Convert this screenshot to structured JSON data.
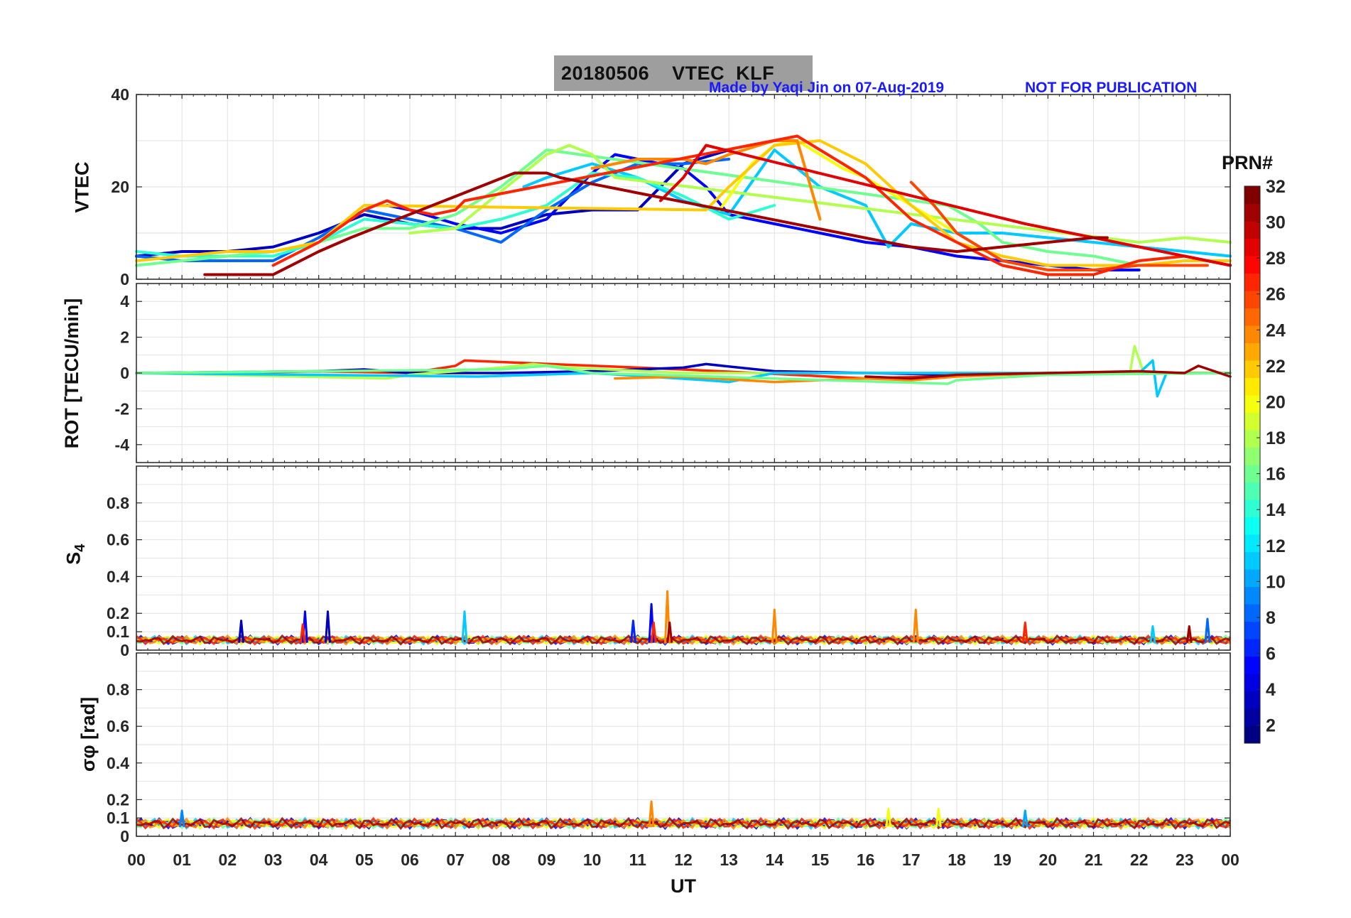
{
  "figure": {
    "title": "20180506    VTEC  KLF",
    "made_by": "Made by Yaqi Jin on 07-Aug-2019",
    "notice": "NOT FOR PUBLICATION",
    "xlabel": "UT",
    "colorbar_label": "PRN#"
  },
  "chart_data": [
    {
      "type": "line",
      "panel": "VTEC",
      "ylabel": "VTEC",
      "xlabel": "UT",
      "xlim": [
        0,
        24
      ],
      "ylim": [
        0,
        40
      ],
      "yticks": [
        0,
        20,
        40
      ],
      "grid": true,
      "color_by": "PRN",
      "series": [
        {
          "prn": 3,
          "x": [
            0,
            1,
            2,
            3,
            4,
            5,
            6,
            7,
            8,
            9,
            10,
            11,
            12,
            13
          ],
          "y": [
            5,
            6,
            6,
            7,
            10,
            14,
            12,
            11,
            11,
            14,
            15,
            15,
            25,
            28
          ]
        },
        {
          "prn": 5,
          "x": [
            5.5,
            6,
            7,
            8,
            9,
            10,
            10.5,
            11,
            12,
            12.5,
            13,
            14,
            15,
            16,
            17,
            18,
            19,
            20,
            21,
            22
          ],
          "y": [
            16,
            15,
            12,
            10,
            13,
            23,
            27,
            26,
            24,
            20,
            14,
            12,
            10,
            8,
            7,
            5,
            4,
            3,
            2,
            2
          ]
        },
        {
          "prn": 8,
          "x": [
            0,
            1,
            2,
            3,
            4,
            5,
            6,
            7,
            8,
            9,
            10,
            11,
            12,
            13
          ],
          "y": [
            5,
            4,
            4,
            4,
            9,
            15,
            13,
            11,
            8,
            15,
            21,
            25,
            25,
            26
          ]
        },
        {
          "prn": 11,
          "x": [
            8.5,
            9,
            10,
            11,
            12,
            13,
            14,
            15,
            16,
            16.5,
            17,
            18,
            19,
            20,
            21,
            22,
            23,
            24
          ],
          "y": [
            20,
            22,
            25,
            22,
            17,
            14,
            28,
            20,
            16,
            7,
            12,
            10,
            10,
            9,
            8,
            7,
            6,
            5
          ]
        },
        {
          "prn": 14,
          "x": [
            0,
            1,
            2,
            3,
            4,
            5,
            6,
            7,
            8,
            9,
            10,
            11,
            12,
            13,
            14
          ],
          "y": [
            6,
            5,
            5,
            5,
            8,
            13,
            12,
            11,
            13,
            16,
            23,
            22,
            18,
            13,
            16
          ]
        },
        {
          "prn": 16,
          "x": [
            0,
            1,
            2,
            3,
            4,
            5,
            6,
            7,
            8,
            9,
            17.8,
            18.5,
            19,
            20,
            21,
            22,
            23
          ],
          "y": [
            3,
            4,
            5,
            6,
            8,
            11,
            11,
            14,
            20,
            28,
            16,
            12,
            8,
            6,
            5,
            3,
            3
          ]
        },
        {
          "prn": 18,
          "x": [
            6,
            7,
            8,
            9,
            9.5,
            10,
            10.5,
            22,
            23,
            24
          ],
          "y": [
            10,
            11,
            19,
            27,
            29,
            27,
            22,
            8,
            9,
            8
          ]
        },
        {
          "prn": 20,
          "x": [
            12.8,
            13.5,
            14,
            14.5,
            15,
            15.5,
            16,
            17,
            18
          ],
          "y": [
            15,
            25,
            29,
            30,
            27,
            24,
            22,
            16,
            10
          ]
        },
        {
          "prn": 22,
          "x": [
            0,
            1,
            2,
            3,
            4,
            5,
            12.5,
            13,
            14,
            15,
            16,
            17,
            18,
            19,
            20,
            21,
            22,
            23,
            24
          ],
          "y": [
            4,
            5,
            6,
            6,
            8,
            16,
            15,
            20,
            29,
            30,
            25,
            16,
            8,
            5,
            3,
            3,
            3,
            4,
            4
          ]
        },
        {
          "prn": 24,
          "x": [
            10,
            11,
            12,
            12.5,
            13,
            14,
            14.5,
            15
          ],
          "y": [
            24,
            26,
            26,
            25,
            27,
            30,
            30,
            13
          ]
        },
        {
          "prn": 26,
          "x": [
            17,
            17.5,
            18,
            19,
            20,
            21,
            22,
            23,
            23.5
          ],
          "y": [
            21,
            16,
            10,
            4,
            2,
            2,
            3,
            3,
            3
          ]
        },
        {
          "prn": 27,
          "x": [
            3,
            4,
            5,
            5.5,
            6,
            6.5,
            7,
            7.2,
            14.5,
            15,
            16,
            17,
            18,
            19,
            20,
            21,
            22,
            23,
            24
          ],
          "y": [
            3,
            8,
            15,
            17,
            15,
            14,
            15,
            17,
            31,
            28,
            22,
            13,
            8,
            3,
            1,
            1,
            4,
            5,
            3
          ]
        },
        {
          "prn": 29,
          "x": [
            11.5,
            12,
            12.5,
            19.5,
            20,
            21,
            22,
            23,
            24
          ],
          "y": [
            17,
            22,
            29,
            12,
            11,
            9,
            7,
            5,
            3
          ]
        },
        {
          "prn": 31,
          "x": [
            1.5,
            2,
            3,
            4,
            4.7,
            8.3,
            9,
            9.3,
            17,
            18,
            19,
            20,
            21,
            21.3
          ],
          "y": [
            1,
            1,
            1,
            6,
            9,
            23,
            23,
            22,
            7,
            6,
            7,
            8,
            9,
            9
          ]
        }
      ]
    },
    {
      "type": "line",
      "panel": "ROT",
      "ylabel": "ROT [TECU/min]",
      "xlim": [
        0,
        24
      ],
      "ylim": [
        -5,
        5
      ],
      "yticks": [
        -4,
        -2,
        0,
        2,
        4
      ],
      "grid": true,
      "series": [
        {
          "prn": 27,
          "x": [
            0,
            2,
            4,
            6,
            6.5,
            7,
            7.2,
            12,
            16,
            20,
            24
          ],
          "y": [
            0,
            0,
            0.1,
            0,
            0.2,
            0.4,
            0.7,
            0.2,
            -0.3,
            0,
            0
          ]
        },
        {
          "prn": 3,
          "x": [
            0,
            4,
            5,
            6,
            8,
            10,
            12,
            12.5,
            14,
            18,
            24
          ],
          "y": [
            0,
            0.1,
            0.2,
            0,
            0,
            0.1,
            0.3,
            0.5,
            0.1,
            -0.1,
            0
          ]
        },
        {
          "prn": 18,
          "x": [
            0,
            5.5,
            6,
            8,
            8.7,
            9.5,
            12,
            16,
            21.8,
            21.9,
            22.1,
            24
          ],
          "y": [
            0,
            -0.3,
            -0.1,
            0.3,
            0.5,
            0.3,
            0,
            0,
            0,
            1.5,
            0,
            0
          ]
        },
        {
          "prn": 11,
          "x": [
            0,
            7.5,
            10,
            12.5,
            13,
            14,
            18,
            22,
            22.3,
            22.4,
            22.6,
            24
          ],
          "y": [
            0,
            -0.2,
            0,
            -0.4,
            -0.5,
            0,
            0,
            0,
            0.7,
            -1.3,
            0,
            0
          ]
        },
        {
          "prn": 24,
          "x": [
            10.5,
            12,
            14,
            16,
            17,
            18,
            20,
            24
          ],
          "y": [
            -0.3,
            -0.2,
            -0.5,
            -0.3,
            -0.4,
            -0.2,
            0,
            0
          ]
        },
        {
          "prn": 16,
          "x": [
            0,
            8,
            9,
            10,
            17.8,
            18,
            20,
            24
          ],
          "y": [
            0,
            0.2,
            0.4,
            0,
            -0.6,
            -0.4,
            -0.1,
            0
          ]
        },
        {
          "prn": 31,
          "x": [
            16,
            17,
            18,
            20,
            22,
            23,
            23.3,
            24
          ],
          "y": [
            -0.2,
            -0.3,
            -0.1,
            0,
            0.1,
            0,
            0.4,
            -0.2
          ]
        }
      ]
    },
    {
      "type": "line",
      "panel": "S4",
      "ylabel": "S4",
      "xlim": [
        0,
        24
      ],
      "ylim": [
        0,
        1
      ],
      "yticks": [
        0,
        0.1,
        0.2,
        0.4,
        0.6,
        0.8
      ],
      "grid": true,
      "baseline_range": [
        0.03,
        0.08
      ],
      "spikes": [
        {
          "prn": 3,
          "x": 2.3,
          "y": 0.16
        },
        {
          "prn": 5,
          "x": 3.7,
          "y": 0.21
        },
        {
          "prn": 27,
          "x": 3.65,
          "y": 0.14
        },
        {
          "prn": 3,
          "x": 4.2,
          "y": 0.21
        },
        {
          "prn": 11,
          "x": 7.2,
          "y": 0.21
        },
        {
          "prn": 6,
          "x": 10.9,
          "y": 0.16
        },
        {
          "prn": 5,
          "x": 11.3,
          "y": 0.25
        },
        {
          "prn": 27,
          "x": 11.35,
          "y": 0.15
        },
        {
          "prn": 24,
          "x": 11.65,
          "y": 0.32
        },
        {
          "prn": 31,
          "x": 11.7,
          "y": 0.15
        },
        {
          "prn": 24,
          "x": 14.0,
          "y": 0.22
        },
        {
          "prn": 24,
          "x": 17.1,
          "y": 0.22
        },
        {
          "prn": 27,
          "x": 19.5,
          "y": 0.15
        },
        {
          "prn": 11,
          "x": 22.3,
          "y": 0.13
        },
        {
          "prn": 31,
          "x": 23.1,
          "y": 0.13
        },
        {
          "prn": 8,
          "x": 23.5,
          "y": 0.17
        }
      ]
    },
    {
      "type": "line",
      "panel": "sigma_phi",
      "ylabel": "σφ [rad]",
      "xlim": [
        0,
        24
      ],
      "ylim": [
        0,
        1
      ],
      "yticks": [
        0,
        0.1,
        0.2,
        0.4,
        0.6,
        0.8
      ],
      "grid": true,
      "baseline_range": [
        0.04,
        0.1
      ],
      "spikes": [
        {
          "prn": 9,
          "x": 1.0,
          "y": 0.14
        },
        {
          "prn": 24,
          "x": 11.3,
          "y": 0.19
        },
        {
          "prn": 20,
          "x": 16.5,
          "y": 0.15
        },
        {
          "prn": 20,
          "x": 17.6,
          "y": 0.15
        },
        {
          "prn": 10,
          "x": 19.5,
          "y": 0.14
        }
      ]
    }
  ],
  "xticks": [
    "00",
    "01",
    "02",
    "03",
    "04",
    "05",
    "06",
    "07",
    "08",
    "09",
    "10",
    "11",
    "12",
    "13",
    "14",
    "15",
    "16",
    "17",
    "18",
    "19",
    "20",
    "21",
    "22",
    "23",
    "00"
  ],
  "colorbar": {
    "range": [
      1,
      32
    ],
    "ticks": [
      2,
      4,
      6,
      8,
      10,
      12,
      14,
      16,
      18,
      20,
      22,
      24,
      26,
      28,
      30,
      32
    ],
    "colormap": "jet"
  }
}
